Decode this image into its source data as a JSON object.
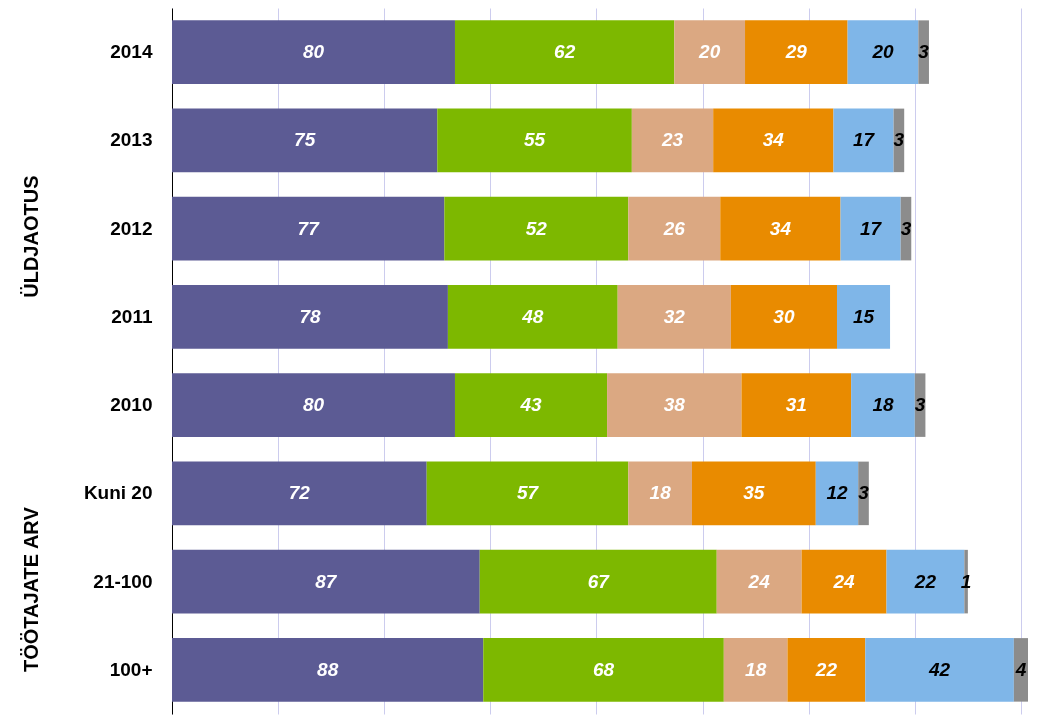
{
  "chart_data": {
    "type": "bar",
    "orientation": "horizontal",
    "stacked": true,
    "data_labels": true,
    "grid": "x",
    "tick_labels": "y",
    "categories": [
      "2014",
      "2013",
      "2012",
      "2011",
      "2010",
      "Kuni 20",
      "21-100",
      "100+"
    ],
    "annotations": [
      "ÜLDJAOTUS",
      "TÖÖTAJATE ARV"
    ],
    "xticks": [
      {
        "value": 0,
        "label": null
      },
      {
        "value": 30,
        "label": null
      },
      {
        "value": 60,
        "label": null
      },
      {
        "value": 90,
        "label": null
      },
      {
        "value": 120,
        "label": null
      },
      {
        "value": 150,
        "label": null
      },
      {
        "value": 180,
        "label": null
      },
      {
        "value": 210,
        "label": null
      },
      {
        "value": 240,
        "label": null
      }
    ],
    "series": [
      {
        "color": "#5c5b94",
        "values": [
          80,
          75,
          77,
          78,
          80,
          72,
          87,
          88
        ]
      },
      {
        "color": "#7db800",
        "values": [
          62,
          55,
          52,
          48,
          43,
          57,
          67,
          68
        ]
      },
      {
        "color": "#dba882",
        "values": [
          20,
          23,
          26,
          32,
          38,
          18,
          24,
          18
        ]
      },
      {
        "color": "#e98b00",
        "values": [
          29,
          34,
          34,
          30,
          31,
          35,
          24,
          22
        ]
      },
      {
        "color": "#7fb6e8",
        "values": [
          20,
          17,
          17,
          15,
          18,
          12,
          22,
          42
        ]
      },
      {
        "color": "#8c8c8c",
        "values": [
          3,
          3,
          3,
          null,
          3,
          3,
          1,
          4
        ]
      }
    ]
  }
}
